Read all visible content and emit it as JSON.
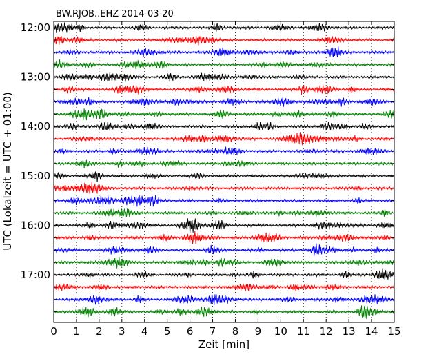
{
  "chart_data": {
    "type": "line",
    "subtype": "dayplot",
    "title": "BW.RJOB..EHZ 2014-03-20",
    "xlabel": "Zeit  [min]",
    "ylabel": "UTC (Lokalzeit = UTC + 01:00)",
    "xlim": [
      0,
      15
    ],
    "x_ticks": [
      0,
      1,
      2,
      3,
      4,
      5,
      6,
      7,
      8,
      9,
      10,
      11,
      12,
      13,
      14,
      15
    ],
    "x_tick_labels": [
      "0",
      "1",
      "2",
      "3",
      "4",
      "5",
      "6",
      "7",
      "8",
      "9",
      "10",
      "11",
      "12",
      "13",
      "14",
      "15"
    ],
    "y_tick_labels": [
      "12:00",
      "13:00",
      "14:00",
      "15:00",
      "16:00",
      "17:00"
    ],
    "vertical_grid": "dotted",
    "trace_colors": [
      "#000000",
      "#ff0000",
      "#0000ff",
      "#008000"
    ],
    "series": [
      {
        "start": "12:00"
      },
      {
        "start": "12:15"
      },
      {
        "start": "12:30"
      },
      {
        "start": "12:45"
      },
      {
        "start": "13:00"
      },
      {
        "start": "13:15"
      },
      {
        "start": "13:30"
      },
      {
        "start": "13:45"
      },
      {
        "start": "14:00"
      },
      {
        "start": "14:15"
      },
      {
        "start": "14:30"
      },
      {
        "start": "14:45"
      },
      {
        "start": "15:00"
      },
      {
        "start": "15:15"
      },
      {
        "start": "15:30"
      },
      {
        "start": "15:45"
      },
      {
        "start": "16:00"
      },
      {
        "start": "16:15"
      },
      {
        "start": "16:30"
      },
      {
        "start": "16:45"
      },
      {
        "start": "17:00"
      },
      {
        "start": "17:15"
      },
      {
        "start": "17:30"
      },
      {
        "start": "17:45"
      }
    ]
  }
}
